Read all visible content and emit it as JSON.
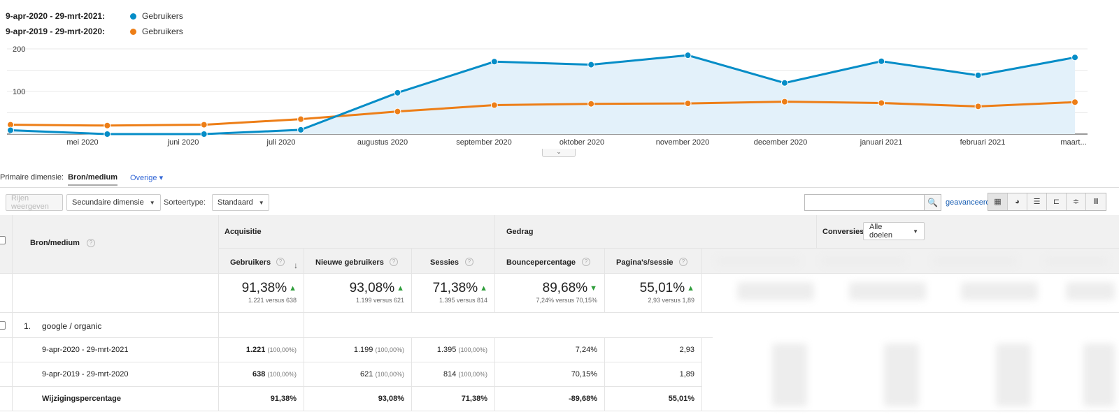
{
  "legend": [
    {
      "range": "9-apr-2020 - 29-mrt-2021:",
      "metric": "Gebruikers",
      "color": "#058dc7"
    },
    {
      "range": "9-apr-2019 - 29-mrt-2020:",
      "metric": "Gebruikers",
      "color": "#ed7e17"
    }
  ],
  "chart_data": {
    "type": "line",
    "title": "",
    "xlabel": "",
    "ylabel": "Gebruikers",
    "ylim": [
      0,
      200
    ],
    "y_ticks": [
      "200",
      "100"
    ],
    "x_labels": [
      "mei 2020",
      "juni 2020",
      "juli 2020",
      "augustus 2020",
      "september 2020",
      "oktober 2020",
      "november 2020",
      "december 2020",
      "januari 2021",
      "februari 2021",
      "maart..."
    ],
    "series": [
      {
        "name": "9-apr-2020 - 29-mrt-2021",
        "color": "#058dc7",
        "fill": "#e3f1fa",
        "x": [
          0,
          1,
          2,
          3,
          4,
          5,
          6,
          7,
          8,
          9,
          10,
          11
        ],
        "values": [
          9,
          0,
          0,
          10,
          97,
          170,
          163,
          185,
          120,
          171,
          138,
          180
        ]
      },
      {
        "name": "9-apr-2019 - 29-mrt-2020",
        "color": "#ed7e17",
        "fill": null,
        "x": [
          0,
          1,
          2,
          3,
          4,
          5,
          6,
          7,
          8,
          9,
          10,
          11
        ],
        "values": [
          22,
          20,
          22,
          35,
          53,
          68,
          71,
          72,
          76,
          73,
          65,
          75
        ]
      }
    ]
  },
  "collapse_handle": "⌄",
  "primary_dimension": {
    "label": "Primaire dimensie:",
    "active": "Bron/medium",
    "other": "Overige ▾"
  },
  "toolbar": {
    "rows_button": "Rijen weergeven",
    "secondary_dimension": "Secundaire dimensie",
    "sort_label": "Sorteertype:",
    "sort_value": "Standaard",
    "search_value": "",
    "search_icon": "🔍",
    "advanced": "geavanceerd",
    "view_icons": [
      "▦",
      "◕",
      "☰",
      "⊏",
      "≑",
      "Ⅲ"
    ]
  },
  "table": {
    "dim_header": "Bron/medium",
    "group_acquisition": "Acquisitie",
    "group_behavior": "Gedrag",
    "group_conversions": "Conversies",
    "goal_select": "Alle doelen",
    "columns": [
      "Gebruikers",
      "Nieuwe gebruikers",
      "Sessies",
      "Bouncepercentage",
      "Pagina's/sessie"
    ],
    "totals": [
      {
        "pct": "91,38%",
        "trend": "▲",
        "sub": "1.221 versus 638"
      },
      {
        "pct": "93,08%",
        "trend": "▲",
        "sub": "1.199 versus 621"
      },
      {
        "pct": "71,38%",
        "trend": "▲",
        "sub": "1.395 versus 814"
      },
      {
        "pct": "89,68%",
        "trend": "▼",
        "sub": "7,24% versus 70,15%"
      },
      {
        "pct": "55,01%",
        "trend": "▲",
        "sub": "2,93 versus 1,89"
      }
    ],
    "row_index": "1.",
    "row_label": "google / organic",
    "subrows": [
      {
        "label": "9-apr-2020 - 29-mrt-2021",
        "values": [
          "1.221",
          "1.199",
          "1.395",
          "7,24%",
          "2,93"
        ],
        "shares": [
          "(100,00%)",
          "(100,00%)",
          "(100,00%)",
          "",
          ""
        ]
      },
      {
        "label": "9-apr-2019 - 29-mrt-2020",
        "values": [
          "638",
          "621",
          "814",
          "70,15%",
          "1,89"
        ],
        "shares": [
          "(100,00%)",
          "(100,00%)",
          "(100,00%)",
          "",
          ""
        ]
      },
      {
        "label": "Wijzigingspercentage",
        "values": [
          "91,38%",
          "93,08%",
          "71,38%",
          "-89,68%",
          "55,01%"
        ],
        "shares": [
          "",
          "",
          "",
          "",
          ""
        ]
      }
    ]
  }
}
